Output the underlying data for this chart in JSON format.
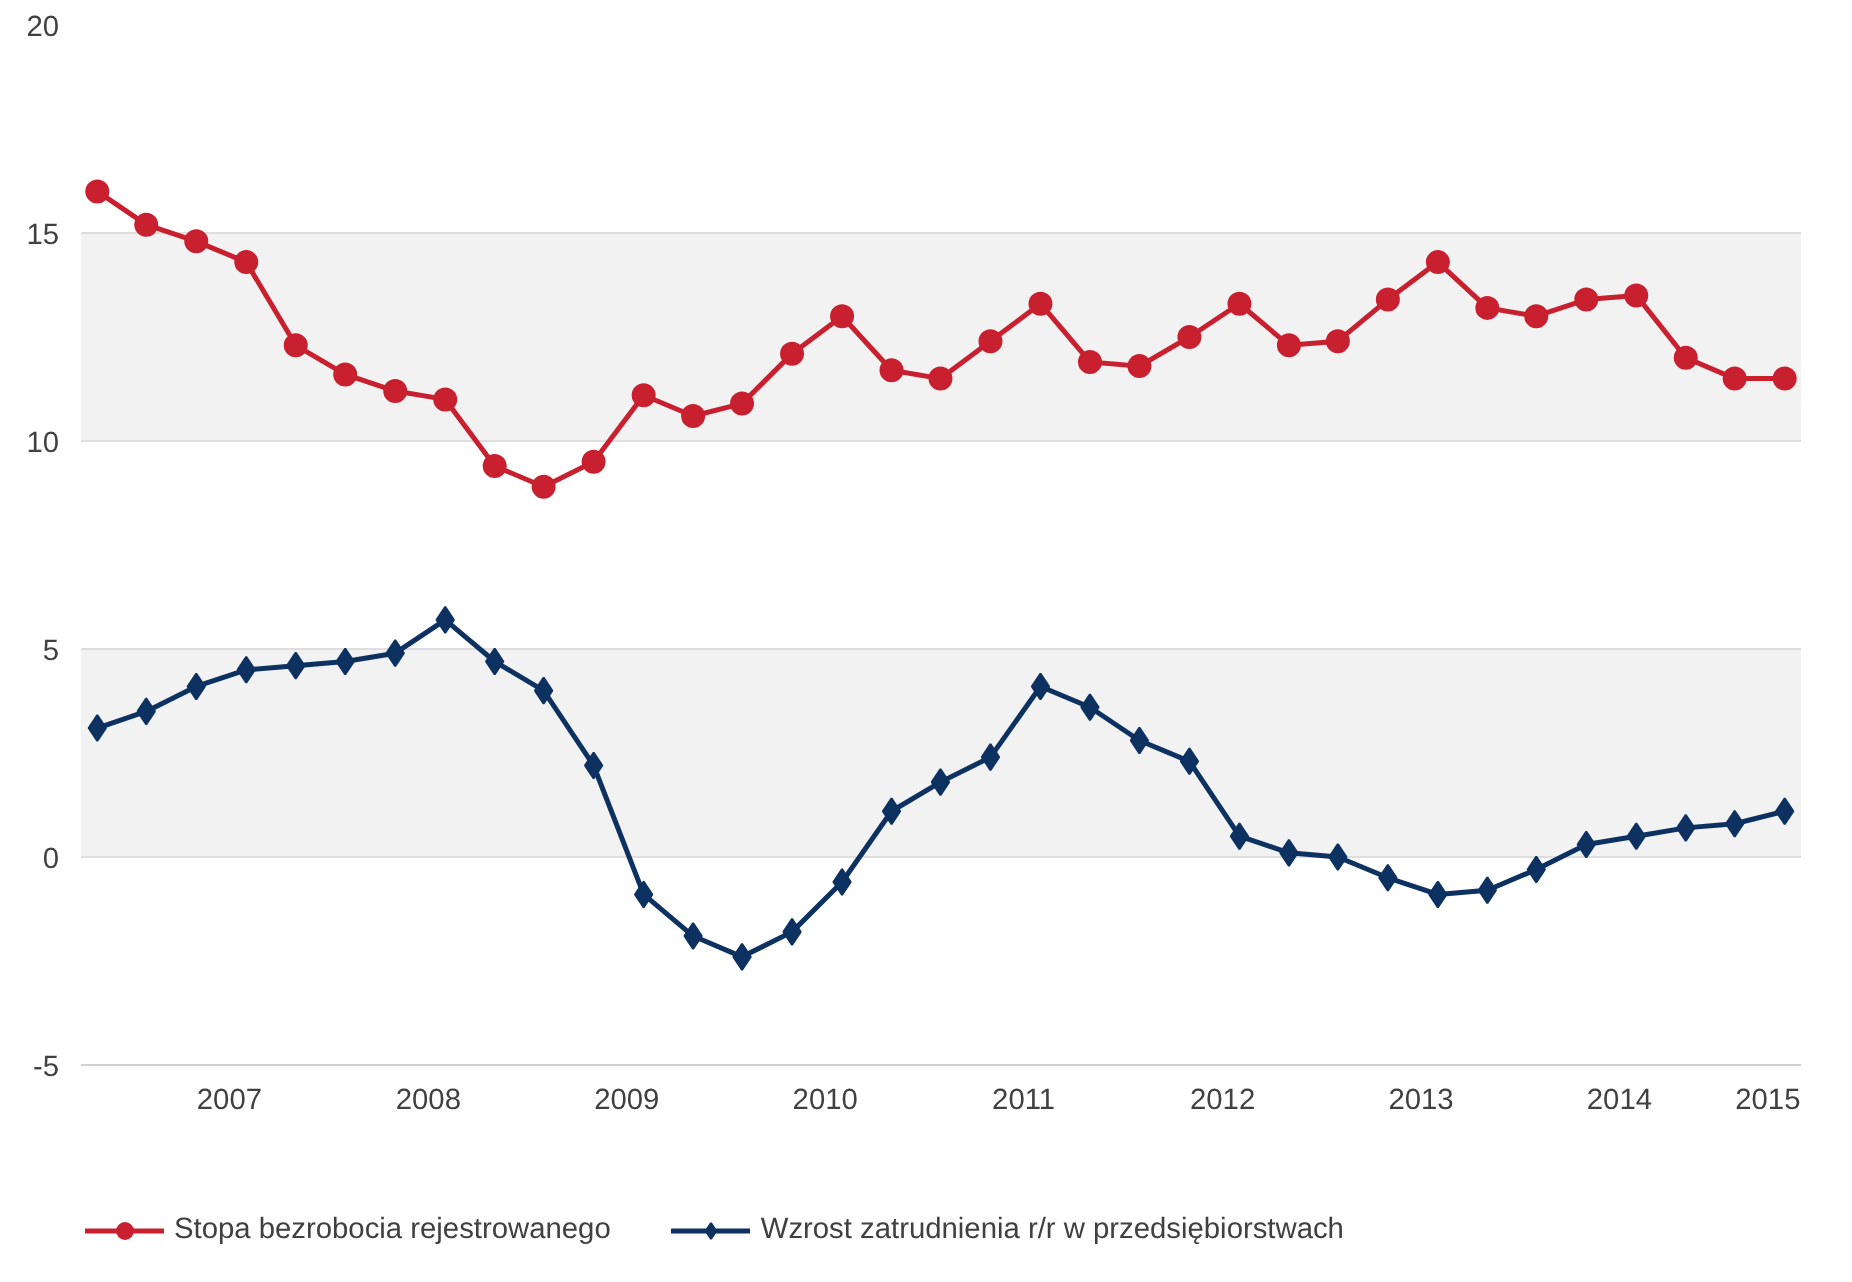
{
  "chart_data": {
    "type": "line",
    "x": [
      "2006-12",
      "2007-03",
      "2007-06",
      "2007-09",
      "2007-12",
      "2008-03",
      "2008-06",
      "2008-09",
      "2008-12",
      "2009-03",
      "2009-06",
      "2009-09",
      "2009-12",
      "2010-03",
      "2010-06",
      "2010-09",
      "2010-12",
      "2011-03",
      "2011-06",
      "2011-09",
      "2011-12",
      "2012-03",
      "2012-06",
      "2012-09",
      "2012-12",
      "2013-03",
      "2013-06",
      "2013-09",
      "2013-12",
      "2014-03",
      "2014-06",
      "2014-09",
      "2014-12",
      "2015-03",
      "2015-06"
    ],
    "series": [
      {
        "name": "Stopa bezrobocia rejestrowanego",
        "color": "#c8202f",
        "marker": "circle",
        "values": [
          16.0,
          15.2,
          14.8,
          14.3,
          12.3,
          11.6,
          11.2,
          11.0,
          9.4,
          8.9,
          9.5,
          11.1,
          10.6,
          10.9,
          12.1,
          13.0,
          11.7,
          11.5,
          12.4,
          13.3,
          11.9,
          11.8,
          12.5,
          13.3,
          12.3,
          12.4,
          13.4,
          14.3,
          13.2,
          13.0,
          13.4,
          13.5,
          12.0,
          11.5,
          11.5
        ]
      },
      {
        "name": "Wzrost zatrudnienia r/r w przedsiębiorstwach",
        "color": "#0d3160",
        "marker": "diamond",
        "values": [
          3.1,
          3.5,
          4.1,
          4.5,
          4.6,
          4.7,
          4.9,
          5.7,
          4.7,
          4.0,
          2.2,
          -0.9,
          -1.9,
          -2.4,
          -1.8,
          -0.6,
          1.1,
          1.8,
          2.4,
          4.1,
          3.6,
          2.8,
          2.3,
          0.5,
          0.1,
          0.0,
          -0.5,
          -0.9,
          -0.8,
          -0.3,
          0.3,
          0.5,
          0.7,
          0.8,
          1.1
        ]
      }
    ],
    "xlim": [
      "2006-11",
      "2015-07"
    ],
    "xticks": [
      {
        "value": "2007-08",
        "label": "2007"
      },
      {
        "value": "2008-08",
        "label": "2008"
      },
      {
        "value": "2009-08",
        "label": "2009"
      },
      {
        "value": "2010-08",
        "label": "2010"
      },
      {
        "value": "2011-08",
        "label": "2011"
      },
      {
        "value": "2012-08",
        "label": "2012"
      },
      {
        "value": "2013-08",
        "label": "2013"
      },
      {
        "value": "2014-08",
        "label": "2014"
      },
      {
        "value": "2015-05",
        "label": "2015"
      }
    ],
    "ylim": [
      -5,
      20
    ],
    "yticks": [
      -5,
      0,
      5,
      10,
      15,
      20
    ],
    "grid": "y",
    "legend": "bottom",
    "line_style": "solid"
  }
}
